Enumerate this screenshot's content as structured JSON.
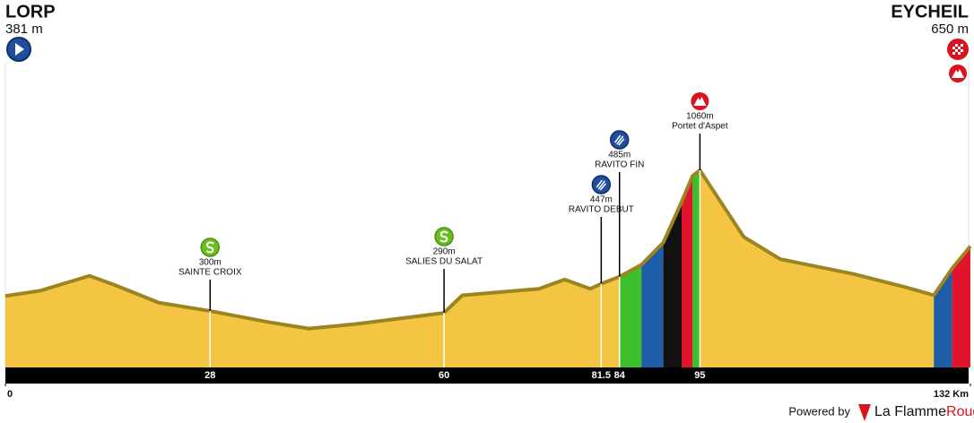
{
  "chart_data": {
    "type": "area",
    "start": {
      "name": "LORP",
      "altitude": 381,
      "altitude_label": "381 m"
    },
    "finish": {
      "name": "EYCHEIL",
      "altitude": 650,
      "altitude_label": "650 m"
    },
    "x": [
      0,
      4.8,
      11.5,
      15,
      21,
      28,
      36,
      41.5,
      48,
      60,
      62.5,
      73,
      76.5,
      80,
      81.5,
      84,
      87,
      90,
      92.5,
      94,
      95,
      97.5,
      101,
      106,
      116,
      123,
      127,
      129.5,
      132
    ],
    "values": [
      381,
      410,
      490,
      440,
      345,
      300,
      240,
      205,
      230,
      290,
      385,
      420,
      470,
      420,
      447,
      485,
      550,
      670,
      890,
      1030,
      1060,
      910,
      700,
      580,
      500,
      430,
      385,
      530,
      650
    ],
    "color": "#f4c542",
    "xlim": [
      0,
      132
    ],
    "xticks": [
      0,
      {
        "value": 132,
        "label": "132 Km"
      }
    ],
    "markers": [
      {
        "km": 28,
        "altitude": 300,
        "altitude_label": "300m",
        "name": "SAINTE CROIX",
        "kind": "sprint"
      },
      {
        "km": 60,
        "altitude": 290,
        "altitude_label": "290m",
        "name": "SALIES DU SALAT",
        "kind": "sprint"
      },
      {
        "km": 81.5,
        "altitude": 447,
        "altitude_label": "447m",
        "name": "RAVITO DEBUT",
        "kind": "feed"
      },
      {
        "km": 84,
        "altitude": 485,
        "altitude_label": "485m",
        "name": "RAVITO FIN",
        "kind": "feed"
      },
      {
        "km": 95,
        "altitude": 1060,
        "altitude_label": "1060m",
        "name": "Portet d'Aspet",
        "kind": "summit"
      }
    ],
    "credit": {
      "text": "Powered by",
      "brand_main": "La Flamme",
      "brand_accent": "Rouge"
    }
  }
}
